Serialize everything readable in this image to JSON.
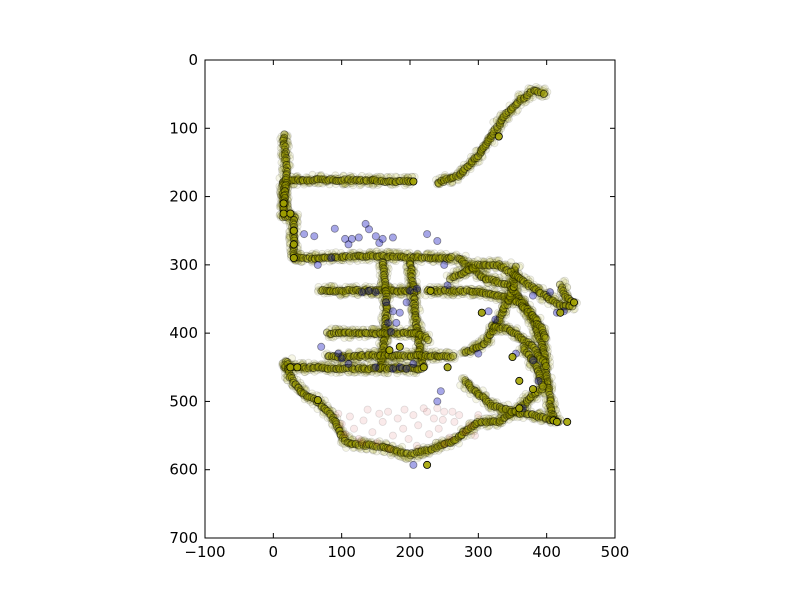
{
  "chart_data": {
    "type": "scatter",
    "title": "",
    "xlabel": "",
    "ylabel": "",
    "xlim": [
      -100,
      500
    ],
    "ylim": [
      0,
      700
    ],
    "y_inverted": true,
    "aspect": "equal",
    "grid": false,
    "legend": "none",
    "x_ticks": [
      -100,
      0,
      100,
      200,
      300,
      400,
      500
    ],
    "y_ticks": [
      0,
      100,
      200,
      300,
      400,
      500,
      600,
      700
    ],
    "x_tick_labels": [
      "−100",
      "0",
      "100",
      "200",
      "300",
      "400",
      "500"
    ],
    "y_tick_labels": [
      "0",
      "100",
      "200",
      "300",
      "400",
      "500",
      "600",
      "700"
    ],
    "series": [
      {
        "color": "#a3a300",
        "opacity": 0.1,
        "paths": [
          [
            [
              15,
              178
            ],
            [
              60,
              175
            ],
            [
              150,
              177
            ],
            [
              205,
              178
            ]
          ],
          [
            [
              15,
              178
            ],
            [
              15,
              230
            ],
            [
              30,
              230
            ],
            [
              30,
              290
            ],
            [
              50,
              290
            ],
            [
              150,
              287
            ],
            [
              230,
              290
            ],
            [
              265,
              290
            ]
          ],
          [
            [
              270,
              290
            ],
            [
              310,
              320
            ],
            [
              345,
              330
            ],
            [
              365,
              355
            ],
            [
              380,
              380
            ],
            [
              395,
              420
            ],
            [
              400,
              460
            ],
            [
              405,
              500
            ],
            [
              410,
              530
            ]
          ],
          [
            [
              225,
              338
            ],
            [
              280,
              338
            ],
            [
              330,
              345
            ],
            [
              360,
              355
            ],
            [
              375,
              370
            ],
            [
              390,
              390
            ],
            [
              400,
              410
            ]
          ],
          [
            [
              70,
              338
            ],
            [
              120,
              338
            ],
            [
              165,
              338
            ],
            [
              200,
              338
            ],
            [
              215,
              338
            ]
          ],
          [
            [
              160,
              295
            ],
            [
              165,
              340
            ],
            [
              165,
              380
            ],
            [
              160,
              430
            ],
            [
              155,
              455
            ]
          ],
          [
            [
              200,
              295
            ],
            [
              205,
              340
            ],
            [
              210,
              390
            ],
            [
              215,
              430
            ],
            [
              220,
              450
            ]
          ],
          [
            [
              80,
              400
            ],
            [
              130,
              400
            ],
            [
              170,
              400
            ],
            [
              210,
              400
            ],
            [
              230,
              410
            ]
          ],
          [
            [
              80,
              435
            ],
            [
              140,
              433
            ],
            [
              200,
              433
            ],
            [
              250,
              433
            ],
            [
              265,
              435
            ]
          ],
          [
            [
              15,
              450
            ],
            [
              40,
              450
            ],
            [
              120,
              452
            ],
            [
              220,
              452
            ]
          ],
          [
            [
              20,
              440
            ],
            [
              25,
              465
            ],
            [
              45,
              490
            ],
            [
              65,
              500
            ],
            [
              85,
              520
            ],
            [
              100,
              550
            ],
            [
              110,
              562
            ],
            [
              150,
              565
            ],
            [
              200,
              578
            ]
          ],
          [
            [
              200,
              578
            ],
            [
              230,
              570
            ],
            [
              260,
              560
            ],
            [
              300,
              530
            ],
            [
              330,
              530
            ],
            [
              360,
              512
            ],
            [
              380,
              490
            ],
            [
              395,
              480
            ]
          ],
          [
            [
              280,
              430
            ],
            [
              310,
              415
            ],
            [
              330,
              380
            ],
            [
              340,
              360
            ],
            [
              350,
              340
            ],
            [
              355,
              300
            ]
          ],
          [
            [
              240,
              180
            ],
            [
              270,
              170
            ],
            [
              300,
              140
            ],
            [
              320,
              110
            ],
            [
              340,
              80
            ],
            [
              360,
              60
            ],
            [
              380,
              45
            ],
            [
              400,
              50
            ]
          ],
          [
            [
              15,
              110
            ],
            [
              20,
              170
            ],
            [
              15,
              220
            ]
          ],
          [
            [
              320,
              390
            ],
            [
              345,
              395
            ],
            [
              360,
              405
            ],
            [
              380,
              420
            ],
            [
              400,
              450
            ]
          ],
          [
            [
              280,
              470
            ],
            [
              300,
              490
            ],
            [
              320,
              505
            ],
            [
              350,
              515
            ],
            [
              380,
              520
            ],
            [
              420,
              530
            ]
          ],
          [
            [
              365,
              420
            ],
            [
              380,
              440
            ],
            [
              390,
              460
            ],
            [
              395,
              480
            ]
          ],
          [
            [
              420,
              330
            ],
            [
              430,
              350
            ],
            [
              440,
              355
            ]
          ],
          [
            [
              260,
              320
            ],
            [
              300,
              300
            ],
            [
              330,
              300
            ],
            [
              360,
              320
            ],
            [
              390,
              340
            ],
            [
              420,
              360
            ],
            [
              440,
              360
            ]
          ]
        ]
      },
      {
        "color": "#0000bb",
        "opacity": 0.35,
        "points": [
          [
            45,
            255
          ],
          [
            60,
            258
          ],
          [
            65,
            300
          ],
          [
            90,
            247
          ],
          [
            105,
            262
          ],
          [
            110,
            270
          ],
          [
            115,
            262
          ],
          [
            125,
            260
          ],
          [
            135,
            240
          ],
          [
            140,
            248
          ],
          [
            150,
            258
          ],
          [
            155,
            268
          ],
          [
            160,
            262
          ],
          [
            175,
            260
          ],
          [
            225,
            255
          ],
          [
            250,
            300
          ],
          [
            240,
            265
          ],
          [
            255,
            330
          ],
          [
            130,
            340
          ],
          [
            140,
            338
          ],
          [
            150,
            340
          ],
          [
            200,
            338
          ],
          [
            195,
            355
          ],
          [
            185,
            370
          ],
          [
            180,
            385
          ],
          [
            175,
            368
          ],
          [
            165,
            355
          ],
          [
            168,
            385
          ],
          [
            172,
            398
          ],
          [
            70,
            420
          ],
          [
            95,
            430
          ],
          [
            100,
            437
          ],
          [
            110,
            445
          ],
          [
            150,
            450
          ],
          [
            175,
            452
          ],
          [
            185,
            450
          ],
          [
            195,
            452
          ],
          [
            205,
            445
          ],
          [
            245,
            485
          ],
          [
            305,
            370
          ],
          [
            315,
            368
          ],
          [
            325,
            380
          ],
          [
            365,
            510
          ],
          [
            355,
            430
          ],
          [
            380,
            440
          ],
          [
            388,
            470
          ],
          [
            380,
            345
          ],
          [
            405,
            340
          ],
          [
            415,
            370
          ],
          [
            425,
            368
          ],
          [
            205,
            593
          ],
          [
            240,
            500
          ],
          [
            210,
            335
          ],
          [
            300,
            430
          ],
          [
            85,
            290
          ]
        ]
      },
      {
        "color": "#cc3333",
        "opacity": 0.1,
        "points": [
          [
            95,
            518
          ],
          [
            100,
            533
          ],
          [
            105,
            548
          ],
          [
            112,
            522
          ],
          [
            118,
            540
          ],
          [
            125,
            555
          ],
          [
            132,
            528
          ],
          [
            138,
            512
          ],
          [
            145,
            545
          ],
          [
            152,
            560
          ],
          [
            160,
            530
          ],
          [
            168,
            515
          ],
          [
            175,
            550
          ],
          [
            182,
            525
          ],
          [
            190,
            540
          ],
          [
            198,
            555
          ],
          [
            205,
            520
          ],
          [
            212,
            535
          ],
          [
            220,
            510
          ],
          [
            228,
            548
          ],
          [
            235,
            525
          ],
          [
            242,
            540
          ],
          [
            250,
            515
          ],
          [
            258,
            553
          ],
          [
            265,
            530
          ],
          [
            272,
            520
          ],
          [
            280,
            545
          ],
          [
            288,
            535
          ],
          [
            295,
            550
          ],
          [
            300,
            520
          ],
          [
            130,
            560
          ],
          [
            170,
            570
          ],
          [
            250,
            563
          ],
          [
            210,
            565
          ],
          [
            225,
            515
          ],
          [
            240,
            510
          ],
          [
            262,
            515
          ],
          [
            248,
            527
          ],
          [
            192,
            512
          ],
          [
            155,
            518
          ]
        ]
      },
      {
        "color": "#a3a300",
        "opacity": 0.9,
        "points": [
          [
            205,
            178
          ],
          [
            15,
            210
          ],
          [
            15,
            225
          ],
          [
            25,
            225
          ],
          [
            30,
            250
          ],
          [
            30,
            270
          ],
          [
            30,
            290
          ],
          [
            25,
            450
          ],
          [
            35,
            450
          ],
          [
            65,
            498
          ],
          [
            225,
            593
          ],
          [
            330,
            112
          ],
          [
            230,
            338
          ],
          [
            305,
            370
          ],
          [
            350,
            435
          ],
          [
            360,
            510
          ],
          [
            380,
            482
          ],
          [
            410,
            528
          ],
          [
            420,
            370
          ],
          [
            440,
            355
          ],
          [
            415,
            530
          ],
          [
            430,
            530
          ],
          [
            360,
            470
          ],
          [
            255,
            450
          ],
          [
            220,
            450
          ],
          [
            185,
            420
          ],
          [
            170,
            425
          ]
        ]
      }
    ]
  }
}
